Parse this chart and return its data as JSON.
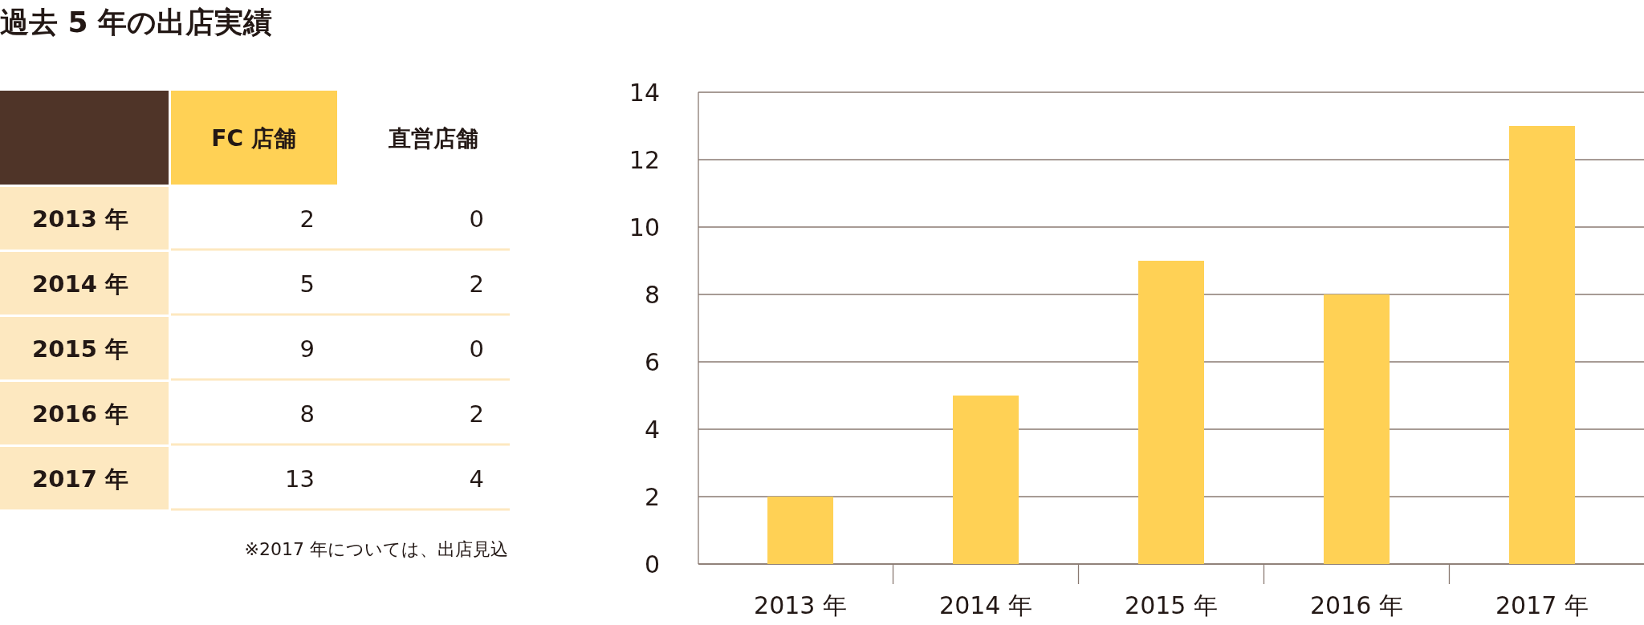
{
  "chart_data": [
    {
      "type": "heatmap",
      "title": "過去 5 年の出店実績",
      "categories": [
        "FC 店舗",
        "直営店舗"
      ],
      "y_categories": [
        "2013 年",
        "2014 年",
        "2015 年",
        "2016 年",
        "2017 年"
      ],
      "cells": [
        [
          2,
          0
        ],
        [
          5,
          2
        ],
        [
          9,
          0
        ],
        [
          8,
          2
        ],
        [
          13,
          4
        ]
      ],
      "data_labels": true,
      "annotations": [
        "※2017 年については、出店見込"
      ]
    },
    {
      "type": "bar",
      "categories": [
        "2013 年",
        "2014 年",
        "2015 年",
        "2016 年",
        "2017 年"
      ],
      "values": [
        2,
        5,
        9,
        8,
        13
      ],
      "color": "#ffd155",
      "ylim": [
        0,
        14
      ],
      "yticks": [
        0,
        2,
        4,
        6,
        8,
        10,
        12,
        14
      ],
      "grid": "y"
    }
  ]
}
